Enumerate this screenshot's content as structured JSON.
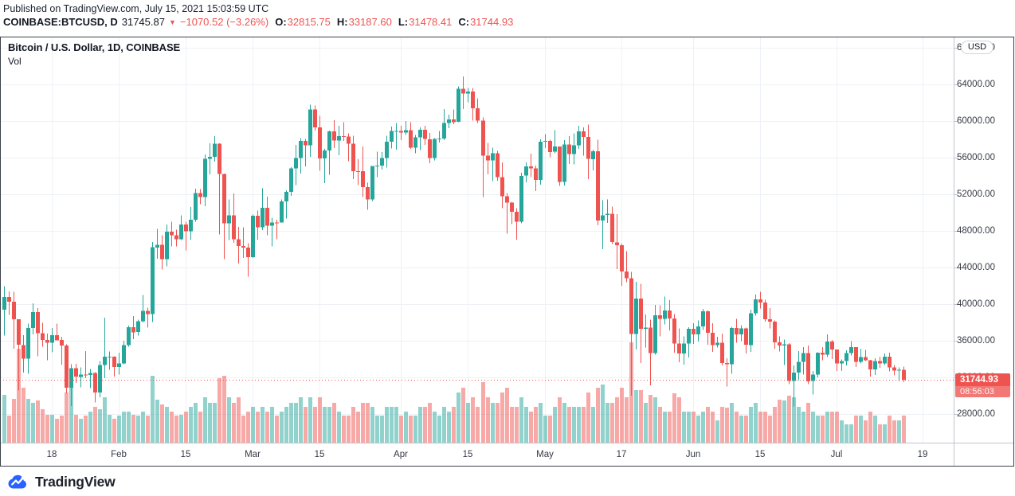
{
  "header": {
    "published": "Published on TradingView.com, July 15, 2021 15:03:59 UTC",
    "symbol": "COINBASE:BTCUSD, D",
    "last": "31745.87",
    "arrow": "▼",
    "change": "−1070.52 (−3.26%)",
    "ohlc": {
      "o": {
        "label": "O:",
        "value": "32815.75"
      },
      "h": {
        "label": "H:",
        "value": "33187.60"
      },
      "l": {
        "label": "L:",
        "value": "31478.41"
      },
      "c": {
        "label": "C:",
        "value": "31744.93"
      }
    }
  },
  "legend": {
    "title": "Bitcoin / U.S. Dollar, 1D, COINBASE",
    "indicator": "Vol"
  },
  "price_axis": {
    "currency_button": "USD",
    "ticks": [
      "68000.00",
      "64000.00",
      "60000.00",
      "56000.00",
      "52000.00",
      "48000.00",
      "44000.00",
      "40000.00",
      "36000.00",
      "32000.00",
      "28000.00"
    ]
  },
  "time_axis": {
    "ticks": [
      {
        "i": 10,
        "label": "18"
      },
      {
        "i": 24,
        "label": "Feb"
      },
      {
        "i": 38,
        "label": "15"
      },
      {
        "i": 52,
        "label": "Mar"
      },
      {
        "i": 66,
        "label": "15"
      },
      {
        "i": 83,
        "label": "Apr"
      },
      {
        "i": 97,
        "label": "15"
      },
      {
        "i": 113,
        "label": "May"
      },
      {
        "i": 129,
        "label": "17"
      },
      {
        "i": 144,
        "label": "Jun"
      },
      {
        "i": 158,
        "label": "15"
      },
      {
        "i": 174,
        "label": "Jul"
      },
      {
        "i": 192,
        "label": "19"
      }
    ]
  },
  "price_tag": {
    "price": "31744.93",
    "countdown": "08:56:03"
  },
  "footer": {
    "brand": "TradingView"
  },
  "colors": {
    "up": "#26a69a",
    "down": "#ef5350",
    "vol_up": "rgba(38,166,154,0.5)",
    "vol_down": "rgba(239,83,80,0.5)",
    "grid": "#eef1f5",
    "separator": "#c1c4cc",
    "border": "#3c414b",
    "axis_text": "#363a45",
    "tag_bg": "#ef5350",
    "brand_blue": "#2962ff"
  },
  "chart_data": {
    "type": "candlestick+volume",
    "title": "Bitcoin / U.S. Dollar, 1D, COINBASE",
    "symbol": "COINBASE:BTCUSD",
    "interval": "1D",
    "x_start_date": "2021-01-08",
    "x_interval_days": 1,
    "current_price": 31744.93,
    "ylim": [
      24800,
      69100
    ],
    "y_tick_step": 4000,
    "legend_position": "top-left",
    "grid": true,
    "candles": [
      [
        39386,
        41950,
        36565,
        40797,
        0.48
      ],
      [
        40788,
        41380,
        38820,
        40254,
        0.27
      ],
      [
        40254,
        41350,
        35111,
        38356,
        0.44
      ],
      [
        38346,
        38346,
        30549,
        35566,
        0.94
      ],
      [
        35516,
        36600,
        32531,
        34049,
        0.55
      ],
      [
        34049,
        37850,
        32380,
        37371,
        0.44
      ],
      [
        37371,
        40100,
        36701,
        39144,
        0.4
      ],
      [
        39144,
        39577,
        34298,
        36825,
        0.42
      ],
      [
        36821,
        37940,
        35357,
        36069,
        0.33
      ],
      [
        36069,
        36800,
        33850,
        35792,
        0.28
      ],
      [
        35792,
        37402,
        34742,
        36630,
        0.28
      ],
      [
        36630,
        37857,
        36060,
        36069,
        0.24
      ],
      [
        36069,
        36415,
        33400,
        35475,
        0.27
      ],
      [
        35475,
        35600,
        30250,
        30850,
        0.5
      ],
      [
        30850,
        33456,
        28850,
        33005,
        0.55
      ],
      [
        33005,
        33471,
        31384,
        32067,
        0.28
      ],
      [
        32067,
        33071,
        30910,
        32289,
        0.24
      ],
      [
        32289,
        34875,
        31910,
        32254,
        0.27
      ],
      [
        32254,
        32921,
        30837,
        32467,
        0.31
      ],
      [
        32467,
        32557,
        29241,
        30366,
        0.36
      ],
      [
        30366,
        33800,
        29842,
        33364,
        0.33
      ],
      [
        33364,
        38531,
        31915,
        34252,
        0.45
      ],
      [
        34252,
        34834,
        32825,
        34262,
        0.28
      ],
      [
        34262,
        34288,
        32100,
        33114,
        0.24
      ],
      [
        33114,
        34717,
        32296,
        33537,
        0.27
      ],
      [
        33537,
        35984,
        33418,
        35510,
        0.31
      ],
      [
        35510,
        37662,
        35362,
        37472,
        0.31
      ],
      [
        37472,
        38708,
        36161,
        36926,
        0.28
      ],
      [
        36931,
        38310,
        36570,
        38144,
        0.27
      ],
      [
        38144,
        41000,
        38000,
        39266,
        0.31
      ],
      [
        39266,
        39621,
        37446,
        38903,
        0.27
      ],
      [
        38903,
        46794,
        38057,
        46196,
        0.67
      ],
      [
        46196,
        48200,
        44961,
        46481,
        0.43
      ],
      [
        46481,
        47510,
        43772,
        44918,
        0.38
      ],
      [
        44918,
        48678,
        44118,
        47909,
        0.36
      ],
      [
        47909,
        48985,
        46300,
        47504,
        0.31
      ],
      [
        47504,
        48150,
        46324,
        47105,
        0.27
      ],
      [
        47105,
        49700,
        47014,
        48717,
        0.28
      ],
      [
        48717,
        49000,
        45871,
        47945,
        0.31
      ],
      [
        47945,
        50600,
        47050,
        49199,
        0.36
      ],
      [
        49199,
        52618,
        49012,
        52149,
        0.4
      ],
      [
        52149,
        52577,
        50901,
        51679,
        0.31
      ],
      [
        51679,
        56368,
        50710,
        55888,
        0.45
      ],
      [
        55888,
        57576,
        54188,
        56099,
        0.4
      ],
      [
        56099,
        58367,
        55564,
        57539,
        0.4
      ],
      [
        57539,
        57574,
        47622,
        54207,
        0.64
      ],
      [
        54207,
        54240,
        44892,
        48824,
        0.67
      ],
      [
        48824,
        51415,
        47016,
        49705,
        0.45
      ],
      [
        49705,
        52102,
        46674,
        47093,
        0.4
      ],
      [
        47093,
        48447,
        44454,
        46339,
        0.45
      ],
      [
        46339,
        48394,
        45050,
        46188,
        0.27
      ],
      [
        46188,
        46651,
        43016,
        45137,
        0.31
      ],
      [
        45137,
        49790,
        45050,
        49631,
        0.36
      ],
      [
        49631,
        50200,
        47047,
        48378,
        0.31
      ],
      [
        48378,
        52640,
        48100,
        50538,
        0.36
      ],
      [
        50538,
        51735,
        47512,
        48561,
        0.31
      ],
      [
        48561,
        49448,
        46300,
        48927,
        0.36
      ],
      [
        48927,
        49200,
        47070,
        48912,
        0.27
      ],
      [
        48912,
        51450,
        48909,
        51206,
        0.31
      ],
      [
        51206,
        52425,
        49328,
        52246,
        0.36
      ],
      [
        52246,
        54936,
        51845,
        54824,
        0.4
      ],
      [
        54824,
        57387,
        53005,
        55963,
        0.4
      ],
      [
        55963,
        58150,
        54272,
        57805,
        0.45
      ],
      [
        57805,
        58063,
        55055,
        57332,
        0.36
      ],
      [
        57332,
        61788,
        56078,
        61243,
        0.45
      ],
      [
        61243,
        61675,
        58972,
        59302,
        0.36
      ],
      [
        59302,
        60559,
        54569,
        55907,
        0.45
      ],
      [
        55907,
        56938,
        53221,
        56804,
        0.36
      ],
      [
        56804,
        58974,
        54123,
        58870,
        0.36
      ],
      [
        58870,
        60100,
        57022,
        57858,
        0.4
      ],
      [
        57858,
        59468,
        56270,
        58346,
        0.31
      ],
      [
        58346,
        59880,
        57820,
        58313,
        0.27
      ],
      [
        58313,
        58633,
        55600,
        57523,
        0.27
      ],
      [
        57523,
        58400,
        53650,
        54529,
        0.36
      ],
      [
        54529,
        55840,
        53000,
        54511,
        0.31
      ],
      [
        54511,
        57200,
        51700,
        52774,
        0.4
      ],
      [
        52774,
        53250,
        50305,
        51415,
        0.4
      ],
      [
        51415,
        55100,
        51260,
        55074,
        0.36
      ],
      [
        55074,
        56660,
        53875,
        55137,
        0.27
      ],
      [
        55137,
        56600,
        54700,
        55973,
        0.27
      ],
      [
        55973,
        58405,
        54926,
        57750,
        0.36
      ],
      [
        57750,
        59397,
        57000,
        58917,
        0.36
      ],
      [
        58917,
        59800,
        56870,
        58918,
        0.36
      ],
      [
        58918,
        59480,
        57934,
        58726,
        0.27
      ],
      [
        58726,
        60000,
        58464,
        58981,
        0.31
      ],
      [
        58981,
        59850,
        56950,
        57090,
        0.27
      ],
      [
        57090,
        58500,
        56488,
        58207,
        0.27
      ],
      [
        58207,
        59300,
        56830,
        59057,
        0.36
      ],
      [
        59057,
        59500,
        57410,
        58019,
        0.36
      ],
      [
        58019,
        58700,
        55400,
        55947,
        0.4
      ],
      [
        55947,
        58150,
        55700,
        58048,
        0.31
      ],
      [
        58048,
        58900,
        57670,
        58083,
        0.27
      ],
      [
        58083,
        61300,
        57900,
        59793,
        0.36
      ],
      [
        59793,
        60700,
        59230,
        60175,
        0.31
      ],
      [
        60175,
        61255,
        59635,
        59890,
        0.36
      ],
      [
        59890,
        63774,
        59850,
        63503,
        0.5
      ],
      [
        63503,
        64854,
        61300,
        62980,
        0.55
      ],
      [
        62980,
        63600,
        62050,
        63216,
        0.4
      ],
      [
        63216,
        63594,
        60050,
        61379,
        0.45
      ],
      [
        61379,
        62500,
        59800,
        60059,
        0.36
      ],
      [
        60059,
        60400,
        51707,
        56216,
        0.6
      ],
      [
        56216,
        57600,
        54187,
        55681,
        0.45
      ],
      [
        55681,
        57100,
        53431,
        56473,
        0.4
      ],
      [
        56473,
        56757,
        53500,
        53857,
        0.4
      ],
      [
        53857,
        55500,
        50500,
        51762,
        0.5
      ],
      [
        51762,
        52120,
        47715,
        51093,
        0.55
      ],
      [
        51093,
        51167,
        48750,
        50100,
        0.36
      ],
      [
        50100,
        50500,
        47044,
        49004,
        0.36
      ],
      [
        49004,
        54356,
        48817,
        54021,
        0.45
      ],
      [
        54021,
        55460,
        53321,
        55033,
        0.36
      ],
      [
        55033,
        56428,
        53887,
        54846,
        0.31
      ],
      [
        54846,
        55115,
        52330,
        53555,
        0.36
      ],
      [
        53555,
        58000,
        53050,
        57750,
        0.4
      ],
      [
        57750,
        58550,
        57050,
        57828,
        0.27
      ],
      [
        57828,
        57939,
        56050,
        56631,
        0.27
      ],
      [
        56631,
        58986,
        56486,
        57200,
        0.36
      ],
      [
        57200,
        57215,
        52900,
        53333,
        0.45
      ],
      [
        53333,
        57900,
        52950,
        57424,
        0.4
      ],
      [
        57424,
        58360,
        55300,
        56396,
        0.36
      ],
      [
        56396,
        58650,
        55259,
        57352,
        0.36
      ],
      [
        57352,
        59500,
        56956,
        58877,
        0.36
      ],
      [
        58877,
        59300,
        56216,
        58250,
        0.36
      ],
      [
        58250,
        59592,
        53666,
        55847,
        0.5
      ],
      [
        55847,
        56872,
        54608,
        56704,
        0.36
      ],
      [
        56704,
        57939,
        48600,
        49150,
        0.55
      ],
      [
        49150,
        51330,
        46000,
        49716,
        0.58
      ],
      [
        49716,
        51438,
        48868,
        49850,
        0.4
      ],
      [
        49850,
        50640,
        46555,
        46760,
        0.4
      ],
      [
        46760,
        49808,
        43825,
        46450,
        0.45
      ],
      [
        46450,
        46623,
        42001,
        43580,
        0.55
      ],
      [
        43580,
        45800,
        42400,
        42817,
        0.45
      ],
      [
        42817,
        43516,
        30000,
        36753,
        1.0
      ],
      [
        36753,
        42451,
        35050,
        40596,
        0.52
      ],
      [
        40596,
        42200,
        33550,
        37304,
        0.52
      ],
      [
        37304,
        38850,
        35251,
        37444,
        0.4
      ],
      [
        37444,
        38290,
        31111,
        34655,
        0.48
      ],
      [
        34655,
        39920,
        34464,
        38796,
        0.45
      ],
      [
        38796,
        39850,
        36480,
        38392,
        0.36
      ],
      [
        38392,
        40841,
        37800,
        39294,
        0.31
      ],
      [
        39294,
        40440,
        37120,
        38436,
        0.31
      ],
      [
        38436,
        38900,
        34684,
        35680,
        0.49
      ],
      [
        35680,
        37338,
        33632,
        34616,
        0.45
      ],
      [
        34616,
        36500,
        33379,
        35678,
        0.31
      ],
      [
        35678,
        37499,
        34153,
        37298,
        0.31
      ],
      [
        37298,
        37894,
        35666,
        36694,
        0.31
      ],
      [
        36694,
        38225,
        35920,
        37575,
        0.27
      ],
      [
        37575,
        39476,
        37170,
        39208,
        0.31
      ],
      [
        39208,
        39289,
        35555,
        36860,
        0.36
      ],
      [
        36860,
        37917,
        34800,
        35538,
        0.31
      ],
      [
        35538,
        36450,
        35244,
        35803,
        0.22
      ],
      [
        35803,
        36790,
        33300,
        33575,
        0.36
      ],
      [
        33575,
        34068,
        31004,
        33416,
        0.35
      ],
      [
        33416,
        37534,
        32396,
        37389,
        0.4
      ],
      [
        37389,
        38405,
        35782,
        36680,
        0.31
      ],
      [
        36680,
        37680,
        35936,
        37338,
        0.27
      ],
      [
        37338,
        37445,
        34600,
        35546,
        0.27
      ],
      [
        35546,
        39380,
        34770,
        39020,
        0.36
      ],
      [
        39020,
        41064,
        38730,
        40526,
        0.4
      ],
      [
        40526,
        41330,
        39506,
        40170,
        0.31
      ],
      [
        40170,
        40495,
        38101,
        38349,
        0.31
      ],
      [
        38349,
        39559,
        37365,
        38092,
        0.27
      ],
      [
        38092,
        38202,
        35129,
        35819,
        0.36
      ],
      [
        35819,
        36457,
        34833,
        35491,
        0.43
      ],
      [
        35491,
        36137,
        33336,
        35600,
        0.42
      ],
      [
        35600,
        35750,
        31251,
        31608,
        0.47
      ],
      [
        31608,
        33298,
        28805,
        32509,
        0.45
      ],
      [
        32509,
        34881,
        31683,
        33678,
        0.36
      ],
      [
        33678,
        35298,
        32286,
        34663,
        0.31
      ],
      [
        34663,
        35500,
        31275,
        31584,
        0.4
      ],
      [
        31584,
        32713,
        30151,
        32283,
        0.31
      ],
      [
        32283,
        34749,
        32017,
        34702,
        0.27
      ],
      [
        34702,
        35301,
        33862,
        34494,
        0.27
      ],
      [
        34494,
        36675,
        34225,
        35911,
        0.31
      ],
      [
        35911,
        36100,
        34017,
        35045,
        0.31
      ],
      [
        35045,
        35057,
        32711,
        33504,
        0.31
      ],
      [
        33504,
        33977,
        32699,
        33797,
        0.22
      ],
      [
        33797,
        34945,
        33316,
        34669,
        0.18
      ],
      [
        34669,
        35967,
        34370,
        35287,
        0.18
      ],
      [
        35287,
        35293,
        33125,
        33690,
        0.27
      ],
      [
        33690,
        35119,
        33532,
        34220,
        0.27
      ],
      [
        34220,
        34994,
        33777,
        33862,
        0.22
      ],
      [
        33862,
        33929,
        32077,
        32877,
        0.31
      ],
      [
        32877,
        34100,
        32261,
        33798,
        0.27
      ],
      [
        33798,
        34262,
        33022,
        33515,
        0.18
      ],
      [
        33515,
        34608,
        33343,
        34254,
        0.18
      ],
      [
        34254,
        34685,
        32658,
        33077,
        0.27
      ],
      [
        33077,
        33340,
        32202,
        32730,
        0.22
      ],
      [
        32730,
        33105,
        31550,
        32815,
        0.22
      ],
      [
        32815.75,
        33187.6,
        31478.41,
        31744.93,
        0.27
      ]
    ]
  }
}
